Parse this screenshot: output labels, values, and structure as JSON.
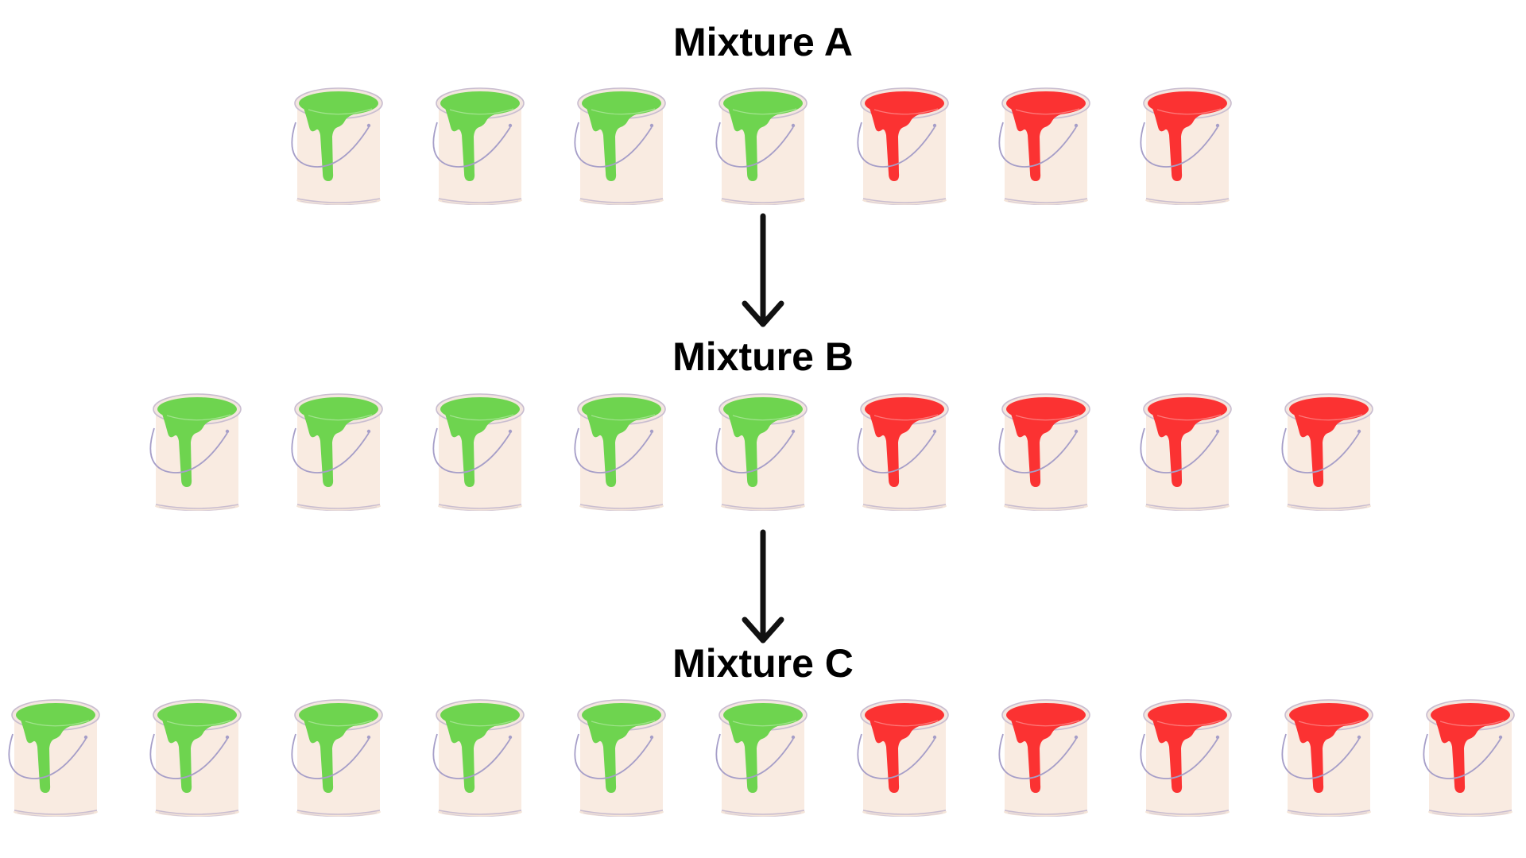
{
  "colors": {
    "green": "#6ed44f",
    "green_dark": "#5cc43f",
    "red": "#fb3232",
    "red_dark": "#e62424",
    "can_body": "#f9ebe1",
    "can_rim": "#c9bdd0",
    "handle": "#a69ec8",
    "arrow": "#111111"
  },
  "icon": "paint-bucket-icon",
  "mixtures": [
    {
      "title": "Mixture A",
      "green_count": 4,
      "red_count": 3
    },
    {
      "title": "Mixture B",
      "green_count": 5,
      "red_count": 4
    },
    {
      "title": "Mixture C",
      "green_count": 6,
      "red_count": 5
    }
  ]
}
